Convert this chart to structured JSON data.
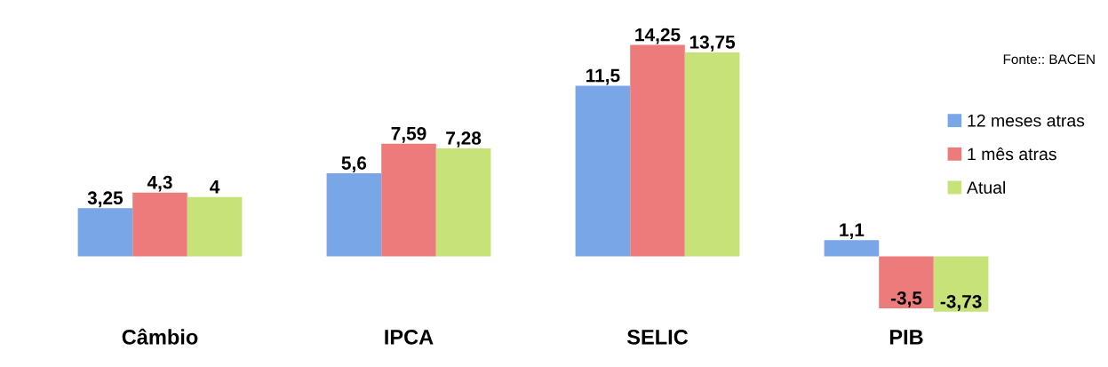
{
  "chart_data": {
    "type": "bar",
    "categories": [
      "Câmbio",
      "IPCA",
      "SELIC",
      "PIB"
    ],
    "series": [
      {
        "name": "12 meses atras",
        "color": "#79a6e6",
        "values": [
          3.25,
          5.6,
          11.5,
          1.1
        ],
        "value_labels": [
          "3,25",
          "5,6",
          "11,5",
          "1,1"
        ]
      },
      {
        "name": "1 mês atras",
        "color": "#ee7b7b",
        "values": [
          4.3,
          7.59,
          14.25,
          -3.5
        ],
        "value_labels": [
          "4,3",
          "7,59",
          "14,25",
          "-3,5"
        ]
      },
      {
        "name": "Atual",
        "color": "#c8e27a",
        "values": [
          4,
          7.28,
          13.75,
          -3.73
        ],
        "value_labels": [
          "4",
          "7,28",
          "13,75",
          "-3,73"
        ]
      }
    ],
    "legend": "right",
    "tick_labels": "x",
    "annotations": [
      "Fonte:: BACEN"
    ]
  }
}
